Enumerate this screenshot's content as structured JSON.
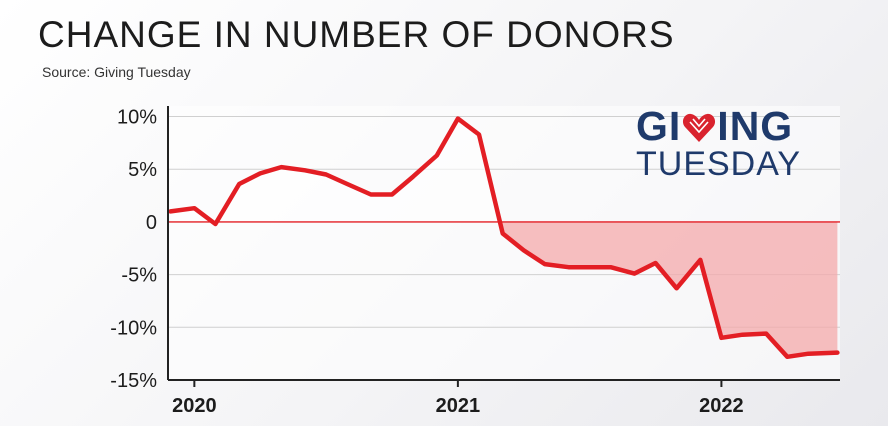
{
  "header": {
    "title": "CHANGE IN NUMBER OF DONORS",
    "source": "Source: Giving Tuesday"
  },
  "logo": {
    "line1_start": "GI",
    "line1_end": "ING",
    "line2": "TUESDAY",
    "color": "#1f3a6b",
    "heart_color": "#d9232e"
  },
  "colors": {
    "line": "#e31e24",
    "negative_fill": "#f4a9ab",
    "positive_fill": "#ffffff",
    "grid": "#d0d0d0",
    "axis": "#222222"
  },
  "chart_data": {
    "type": "area",
    "title": "CHANGE IN NUMBER OF DONORS",
    "xlabel": "",
    "ylabel": "",
    "ylim": [
      -15,
      11
    ],
    "xlim": [
      2019.9,
      2022.45
    ],
    "y_ticks": [
      10,
      5,
      0,
      -5,
      -10,
      -15
    ],
    "y_tick_labels": [
      "10%",
      "5%",
      "0",
      "-5%",
      "-10%",
      "-15%"
    ],
    "x_ticks": [
      2020,
      2021,
      2022
    ],
    "x_tick_labels": [
      "2020",
      "2021",
      "2022"
    ],
    "grid": true,
    "legend": "none",
    "series": [
      {
        "x": [
          2019.91,
          2020.0,
          2020.08,
          2020.17,
          2020.25,
          2020.33,
          2020.42,
          2020.5,
          2020.58,
          2020.67,
          2020.75,
          2020.83,
          2020.92,
          2021.0,
          2021.08,
          2021.17,
          2021.25,
          2021.33,
          2021.42,
          2021.5,
          2021.58,
          2021.67,
          2021.75,
          2021.83,
          2021.92,
          2022.0,
          2022.08,
          2022.17,
          2022.25,
          2022.33,
          2022.44
        ],
        "values": [
          1.0,
          1.3,
          -0.2,
          3.6,
          4.6,
          5.2,
          4.9,
          4.5,
          3.6,
          2.6,
          2.6,
          4.3,
          6.3,
          9.8,
          8.3,
          -1.1,
          -2.7,
          -4.0,
          -4.3,
          -4.3,
          -4.3,
          -4.9,
          -3.9,
          -6.3,
          -3.6,
          -11.0,
          -10.7,
          -10.6,
          -12.8,
          -12.5,
          -12.4
        ]
      }
    ]
  }
}
